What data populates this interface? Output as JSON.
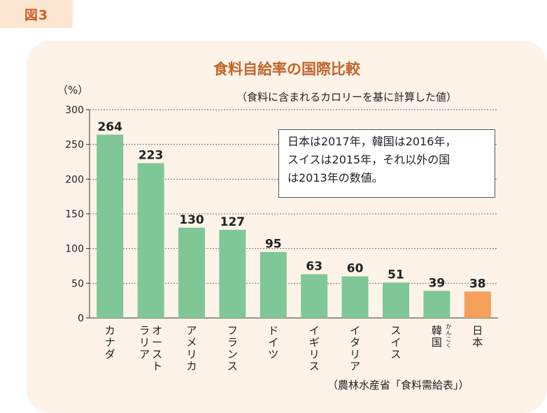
{
  "figure_label": "図3",
  "annotation_lines": [
    "日本は2017年，韓国は2016年，",
    "スイスは2015年，それ以外の国",
    "は2013年の数値。"
  ],
  "chart_data": {
    "type": "bar",
    "title": "食料自給率の国際比較",
    "ylabel": "（%）",
    "note": "（食料に含まれるカロリーを基に計算した値）",
    "source": "（農林水産省「食料需給表」）",
    "ylim": [
      0,
      300
    ],
    "yticks": [
      0,
      50,
      100,
      150,
      200,
      250,
      300
    ],
    "grid": true,
    "categories": [
      "カナダ",
      "オーストラリア",
      "アメリカ",
      "フランス",
      "ドイツ",
      "イギリス",
      "イタリア",
      "スイス",
      "韓国",
      "日本"
    ],
    "label_columns": [
      [
        "カナダ"
      ],
      [
        "オースト",
        "ラリア"
      ],
      [
        "アメリカ"
      ],
      [
        "フランス"
      ],
      [
        "ドイツ"
      ],
      [
        "イギリス"
      ],
      [
        "イタリア"
      ],
      [
        "スイス"
      ],
      [
        "韓国"
      ],
      [
        "日本"
      ]
    ],
    "ruby": {
      "index": 8,
      "text": "かんこく"
    },
    "values": [
      264,
      223,
      130,
      127,
      95,
      63,
      60,
      51,
      39,
      38
    ],
    "colors": {
      "default": "#7fc796",
      "highlight": "#f4a05a"
    },
    "highlight_index": 9
  }
}
